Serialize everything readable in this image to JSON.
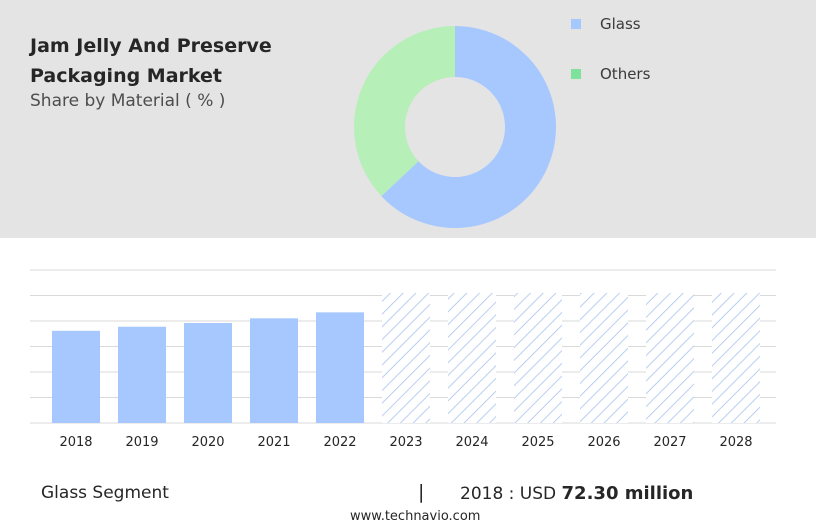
{
  "header": {
    "title": "Jam Jelly And Preserve Packaging Market",
    "subtitle": "Share by Material ( % )"
  },
  "colors": {
    "panel_bg": "#e4e4e4",
    "glass": "#a6c8ff",
    "others": "#b7efb8",
    "others_legend": "#7ee29a",
    "gridline": "#d9d9d9"
  },
  "chart_data": [
    {
      "type": "pie",
      "style": "donut",
      "legend_position": "top-right",
      "slices": [
        {
          "label": "Glass",
          "value": 63
        },
        {
          "label": "Others",
          "value": 37
        }
      ]
    },
    {
      "type": "bar",
      "categories": [
        "2018",
        "2019",
        "2020",
        "2021",
        "2022",
        "2023",
        "2024",
        "2025",
        "2026",
        "2027",
        "2028"
      ],
      "values": [
        72.3,
        75.5,
        78.4,
        82.1,
        86.8,
        null,
        null,
        null,
        null,
        null,
        null
      ],
      "forecast_categories": [
        "2023",
        "2024",
        "2025",
        "2026",
        "2027",
        "2028"
      ],
      "forecast_style": "hatched",
      "ylim": [
        0,
        120
      ],
      "grid": true,
      "xlabel": "",
      "ylabel": ""
    }
  ],
  "legend": {
    "items": [
      {
        "label": "Glass"
      },
      {
        "label": "Others"
      }
    ]
  },
  "footer": {
    "segment": "Glass Segment",
    "divider": "|",
    "value_prefix": "2018 : USD",
    "value_bold": "72.30 million",
    "site": "www.technavio.com"
  }
}
